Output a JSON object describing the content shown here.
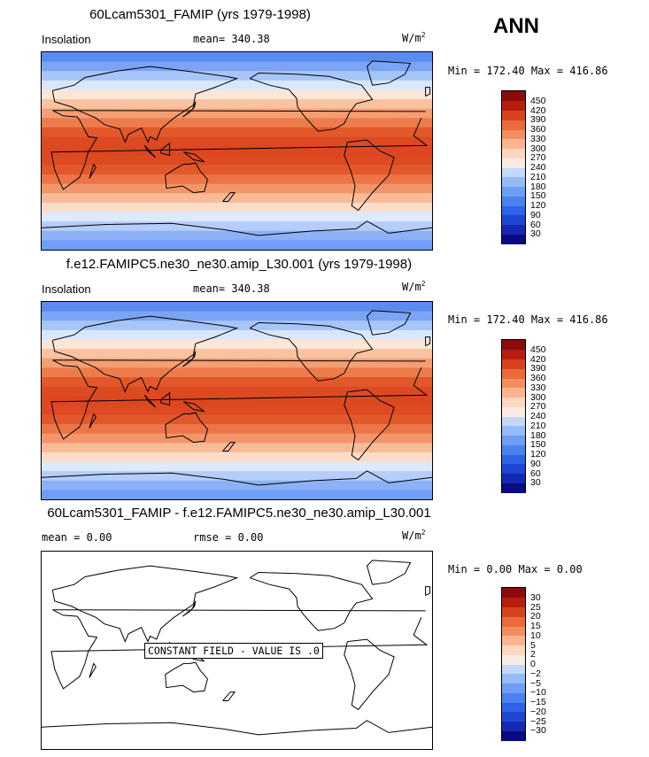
{
  "season": "ANN",
  "panels": [
    {
      "title": "60Lcam5301_FAMIP (yrs 1979-1998)",
      "left_label": "Insolation",
      "mean_text": "mean= 340.38",
      "units": "W/m",
      "units_exp": "2",
      "minmax_text": "Min = 172.40 Max = 416.86"
    },
    {
      "title": "f.e12.FAMIPC5.ne30_ne30.amip_L30.001 (yrs 1979-1998)",
      "left_label": "Insolation",
      "mean_text": "mean= 340.38",
      "units": "W/m",
      "units_exp": "2",
      "minmax_text": "Min = 172.40 Max = 416.86"
    },
    {
      "title": "60Lcam5301_FAMIP - f.e12.FAMIPC5.ne30_ne30.amip_L30.001",
      "left_label": "mean =    0.00",
      "mean_text": "rmse =    0.00",
      "units": "W/m",
      "units_exp": "2",
      "minmax_text": "Min =    0.00 Max =    0.00",
      "note": "CONSTANT FIELD - VALUE IS .0"
    }
  ],
  "chart_data": [
    {
      "type": "heatmap",
      "title": "60Lcam5301_FAMIP (yrs 1979-1998)",
      "variable": "Insolation",
      "units": "W/m2",
      "mean": 340.38,
      "min": 172.4,
      "max": 416.86,
      "colorbar_levels": [
        30,
        60,
        90,
        120,
        150,
        180,
        210,
        240,
        270,
        300,
        330,
        360,
        390,
        420,
        450
      ],
      "colorbar_colors": [
        "#0a0a82",
        "#1428b4",
        "#1e46d2",
        "#2d64e6",
        "#4b82f0",
        "#6e9ef5",
        "#96bcf8",
        "#c3d9fb",
        "#f8ece2",
        "#fcd7c0",
        "#f9b590",
        "#f48e60",
        "#ea6a3a",
        "#d8421f",
        "#b81d10",
        "#8a0d0d"
      ],
      "lat_band_colors": [
        "#5a8cf0",
        "#7ba5f4",
        "#a6c5f9",
        "#d9e7fc",
        "#fce6d7",
        "#f9c2a0",
        "#f39e73",
        "#ed7c4c",
        "#e3582b",
        "#dd4a22",
        "#dc4720",
        "#dd4a22",
        "#e3582b",
        "#ec7446",
        "#f2956a",
        "#f8bb98",
        "#fbdcc8",
        "#dde9fc",
        "#b4cdfa",
        "#8cb1f6",
        "#6e9ef5"
      ]
    },
    {
      "type": "heatmap",
      "title": "f.e12.FAMIPC5.ne30_ne30.amip_L30.001 (yrs 1979-1998)",
      "variable": "Insolation",
      "units": "W/m2",
      "mean": 340.38,
      "min": 172.4,
      "max": 416.86,
      "colorbar_levels": [
        30,
        60,
        90,
        120,
        150,
        180,
        210,
        240,
        270,
        300,
        330,
        360,
        390,
        420,
        450
      ],
      "colorbar_colors": [
        "#0a0a82",
        "#1428b4",
        "#1e46d2",
        "#2d64e6",
        "#4b82f0",
        "#6e9ef5",
        "#96bcf8",
        "#c3d9fb",
        "#f8ece2",
        "#fcd7c0",
        "#f9b590",
        "#f48e60",
        "#ea6a3a",
        "#d8421f",
        "#b81d10",
        "#8a0d0d"
      ],
      "lat_band_colors": [
        "#5a8cf0",
        "#7ba5f4",
        "#a6c5f9",
        "#d9e7fc",
        "#fce6d7",
        "#f9c2a0",
        "#f39e73",
        "#ed7c4c",
        "#e3582b",
        "#dd4a22",
        "#dc4720",
        "#dd4a22",
        "#e3582b",
        "#ec7446",
        "#f2956a",
        "#f8bb98",
        "#fbdcc8",
        "#dde9fc",
        "#b4cdfa",
        "#8cb1f6",
        "#6e9ef5"
      ]
    },
    {
      "type": "heatmap",
      "title": "60Lcam5301_FAMIP - f.e12.FAMIPC5.ne30_ne30.amip_L30.001",
      "units": "W/m2",
      "mean": 0.0,
      "rmse": 0.0,
      "min": 0.0,
      "max": 0.0,
      "colorbar_levels": [
        -30,
        -25,
        -20,
        -15,
        -10,
        -5,
        -2,
        0,
        2,
        5,
        10,
        15,
        20,
        25,
        30
      ],
      "colorbar_colors": [
        "#0a0a82",
        "#1428b4",
        "#1e46d2",
        "#2d64e6",
        "#4b82f0",
        "#6e9ef5",
        "#96bcf8",
        "#c3d9fb",
        "#f8ece2",
        "#fcd7c0",
        "#f9b590",
        "#f48e60",
        "#ea6a3a",
        "#d8421f",
        "#b81d10",
        "#8a0d0d"
      ],
      "lat_band_colors": [
        "#ffffff"
      ]
    }
  ]
}
